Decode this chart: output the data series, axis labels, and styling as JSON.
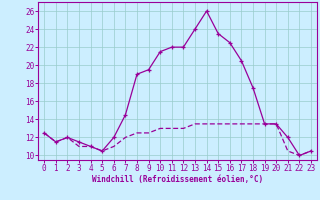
{
  "xlabel": "Windchill (Refroidissement éolien,°C)",
  "background_color": "#cceeff",
  "line_color": "#990099",
  "grid_color": "#99cccc",
  "ylim": [
    9.5,
    27.0
  ],
  "xlim": [
    -0.5,
    23.5
  ],
  "yticks": [
    10,
    12,
    14,
    16,
    18,
    20,
    22,
    24,
    26
  ],
  "xticks": [
    0,
    1,
    2,
    3,
    4,
    5,
    6,
    7,
    8,
    9,
    10,
    11,
    12,
    13,
    14,
    15,
    16,
    17,
    18,
    19,
    20,
    21,
    22,
    23
  ],
  "series1_x": [
    0,
    1,
    2,
    3,
    4,
    5,
    6,
    7,
    8,
    9,
    10,
    11,
    12,
    13,
    14,
    15,
    16,
    17,
    18,
    19,
    20,
    21,
    22,
    23
  ],
  "series1_y": [
    12.5,
    11.5,
    12.0,
    11.5,
    11.0,
    10.5,
    12.0,
    14.5,
    19.0,
    19.5,
    21.5,
    22.0,
    22.0,
    24.0,
    26.0,
    23.5,
    22.5,
    20.5,
    17.5,
    13.5,
    13.5,
    12.0,
    10.0,
    10.5
  ],
  "series2_x": [
    0,
    1,
    2,
    3,
    4,
    5,
    6,
    7,
    8,
    9,
    10,
    11,
    12,
    13,
    14,
    15,
    16,
    17,
    18,
    19,
    20,
    21,
    22,
    23
  ],
  "series2_y": [
    12.5,
    11.5,
    12.0,
    11.0,
    11.0,
    10.5,
    11.0,
    12.0,
    12.5,
    12.5,
    13.0,
    13.0,
    13.0,
    13.5,
    13.5,
    13.5,
    13.5,
    13.5,
    13.5,
    13.5,
    13.5,
    10.5,
    10.0,
    10.5
  ],
  "label_fontsize": 5.5,
  "tick_fontsize": 5.5
}
